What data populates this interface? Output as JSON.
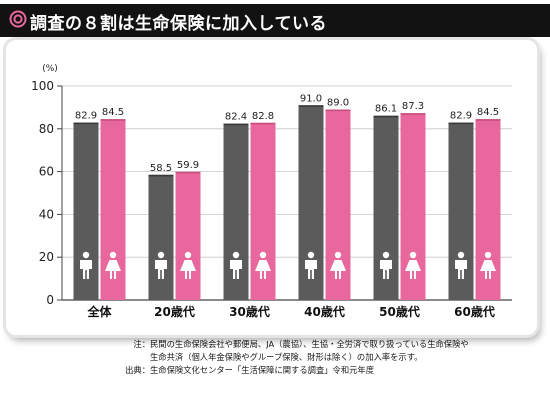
{
  "title": "調査の８割は生命保険に加入している",
  "chart_data": {
    "type": "bar",
    "categories": [
      "全体",
      "20歳代",
      "30歳代",
      "40歳代",
      "50歳代",
      "60歳代"
    ],
    "series": [
      {
        "values": [
          82.9,
          58.5,
          82.4,
          91.0,
          86.1,
          82.9
        ],
        "labels": [
          "82.9",
          "58.5",
          "82.4",
          "91.0",
          "86.1",
          "82.9"
        ],
        "color": "#5b5b5b",
        "icon": "male-icon"
      },
      {
        "values": [
          84.5,
          59.9,
          82.8,
          89.0,
          87.3,
          84.5
        ],
        "labels": [
          "84.5",
          "59.9",
          "82.8",
          "89.0",
          "87.3",
          "84.5"
        ],
        "color": "#e8679c",
        "icon": "female-icon"
      }
    ],
    "unit": "(%)",
    "ylim": [
      0,
      100
    ],
    "yticks": [
      0,
      20,
      40,
      60,
      80,
      100
    ],
    "grid": true
  },
  "notes": [
    {
      "head": "注：",
      "lines": [
        "民間の生命保険会社や郵便局、JA（農協）、生協・全労済で取り扱っている生命保険や",
        "生命共済（個人年金保険やグループ保険、財形は除く）の加入率を示す。"
      ]
    },
    {
      "head": "出典：",
      "lines": [
        "生命保険文化センター「生活保障に関する調査」令和元年度"
      ]
    }
  ]
}
